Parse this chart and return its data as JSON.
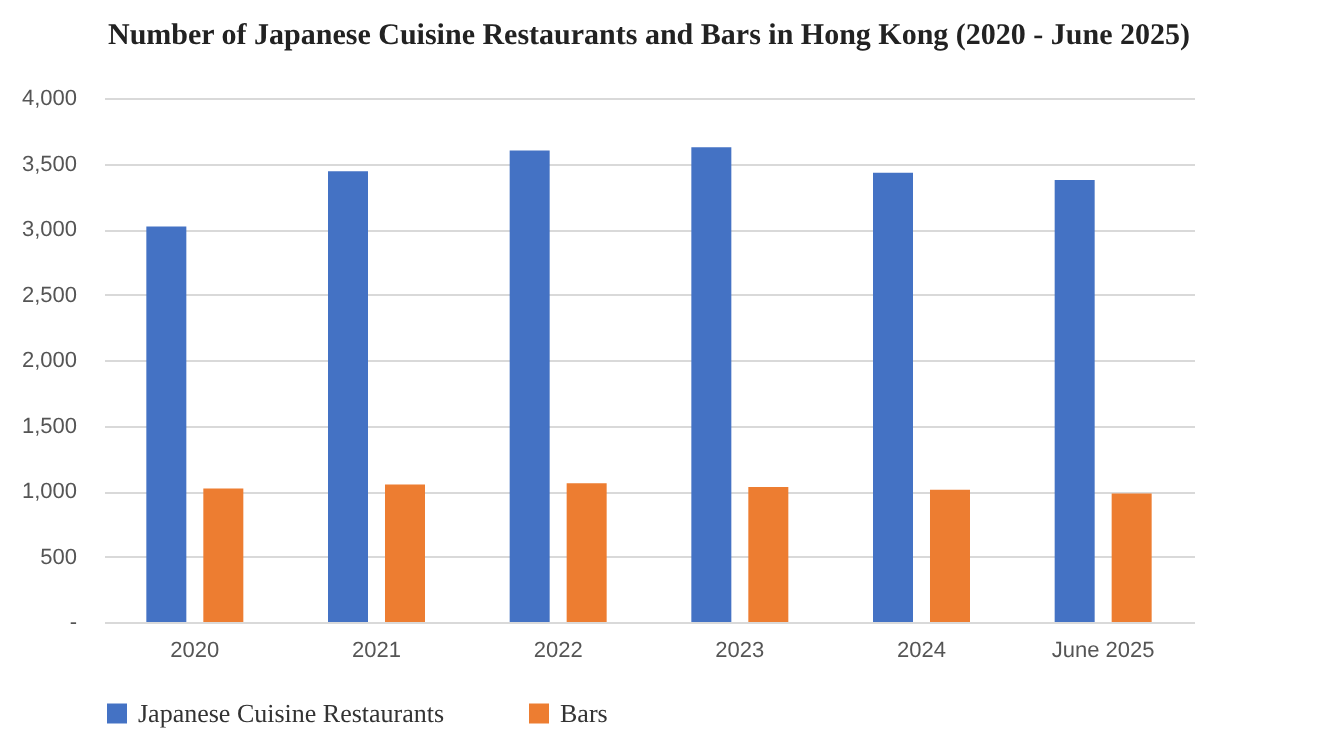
{
  "chart_data": {
    "type": "bar",
    "title": "Number of Japanese Cuisine Restaurants and Bars in Hong Kong (2020 - June 2025)",
    "categories": [
      "2020",
      "2021",
      "2022",
      "2023",
      "2024",
      "June 2025"
    ],
    "series": [
      {
        "name": "Japanese Cuisine Restaurants",
        "color": "#4472c4",
        "values": [
          3020,
          3440,
          3600,
          3625,
          3430,
          3375
        ]
      },
      {
        "name": "Bars",
        "color": "#ed7d31",
        "values": [
          1020,
          1050,
          1060,
          1030,
          1010,
          980
        ]
      }
    ],
    "ylim": [
      0,
      4000
    ],
    "yticks": [
      {
        "value": 0,
        "label": "-"
      },
      {
        "value": 500,
        "label": "500"
      },
      {
        "value": 1000,
        "label": "1,000"
      },
      {
        "value": 1500,
        "label": "1,500"
      },
      {
        "value": 2000,
        "label": "2,000"
      },
      {
        "value": 2500,
        "label": "2,500"
      },
      {
        "value": 3000,
        "label": "3,000"
      },
      {
        "value": 3500,
        "label": "3,500"
      },
      {
        "value": 4000,
        "label": "4,000"
      }
    ],
    "grid": "y",
    "legend": "bottom"
  }
}
